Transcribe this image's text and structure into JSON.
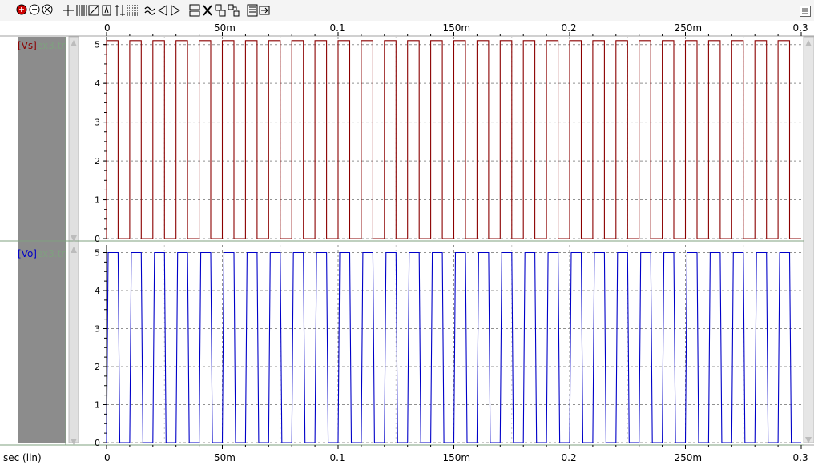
{
  "toolbar": {
    "icons": [
      "zoom-in-icon",
      "zoom-out-icon",
      "zoom-fit-icon",
      "cursor-icon",
      "grid-icon",
      "measure-icon",
      "marker-icon",
      "measure-vertical-icon",
      "crosshair-grid-icon",
      "waveform-icon",
      "prev-icon",
      "next-icon",
      "stack-icon",
      "delete-icon",
      "overlay-icon",
      "split-icon",
      "export-icon"
    ],
    "menu_icon": "menu-icon"
  },
  "colors": {
    "vs": "#8b0000",
    "vo": "#0000c8",
    "label_gray": "#7fa07f",
    "panel_gray": "#8c8c8c"
  },
  "chart_data": [
    {
      "type": "line",
      "series": [
        {
          "name": "[Vs]",
          "file": "ex3.tr",
          "x_start": 0,
          "period": 0.01,
          "high_fraction": 0.5,
          "low": 0,
          "high": 5.1
        }
      ],
      "yticks": [
        "0",
        "1",
        "2",
        "3",
        "4",
        "5"
      ],
      "ylim": [
        0,
        5.2
      ],
      "xlim": [
        0,
        0.3
      ],
      "xticks": [
        "0",
        "50m",
        "0.1",
        "150m",
        "0.2",
        "250m",
        "0.3"
      ],
      "grid": true
    },
    {
      "type": "line",
      "series": [
        {
          "name": "[Vo]",
          "file": "ex3.tr",
          "x_start": 0,
          "period": 0.01,
          "high_fraction": 0.5,
          "low": 0,
          "high": 5.0,
          "transition": 0.0007
        }
      ],
      "yticks": [
        "0",
        "1",
        "2",
        "3",
        "4",
        "5"
      ],
      "ylim": [
        0,
        5.2
      ],
      "xlim": [
        0,
        0.3
      ],
      "xticks": [
        "0",
        "50m",
        "0.1",
        "150m",
        "0.2",
        "250m",
        "0.3"
      ],
      "xlabel": "sec (lin)",
      "grid": true
    }
  ]
}
